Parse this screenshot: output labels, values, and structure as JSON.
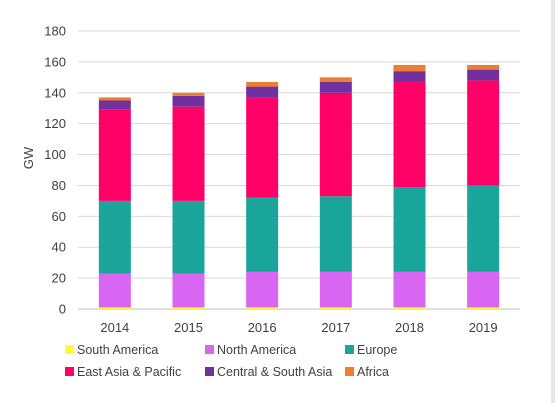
{
  "chart_data": {
    "type": "bar",
    "stacked": true,
    "title": "",
    "xlabel": "",
    "ylabel": "GW",
    "ylim": [
      0,
      180
    ],
    "yticks": [
      0,
      20,
      40,
      60,
      80,
      100,
      120,
      140,
      160,
      180
    ],
    "grid": "horizontal",
    "legend_position": "bottom",
    "categories": [
      "2014",
      "2015",
      "2016",
      "2017",
      "2018",
      "2019"
    ],
    "series": [
      {
        "name": "South America",
        "color": "#ffff33",
        "values": [
          1,
          1,
          1,
          1,
          1,
          1
        ]
      },
      {
        "name": "North America",
        "color": "#d966f2",
        "values": [
          22,
          22,
          23,
          23,
          23,
          23
        ]
      },
      {
        "name": "Europe",
        "color": "#1aa59b",
        "values": [
          47,
          47,
          48,
          49,
          55,
          56
        ]
      },
      {
        "name": "East Asia & Pacific",
        "color": "#ff0066",
        "values": [
          59,
          61,
          65,
          67,
          68,
          68
        ]
      },
      {
        "name": "Central & South Asia",
        "color": "#7030a0",
        "values": [
          6,
          7,
          7,
          7,
          7,
          7
        ]
      },
      {
        "name": "Africa",
        "color": "#ed7d31",
        "values": [
          2,
          2,
          3,
          3,
          4,
          3
        ]
      }
    ]
  }
}
